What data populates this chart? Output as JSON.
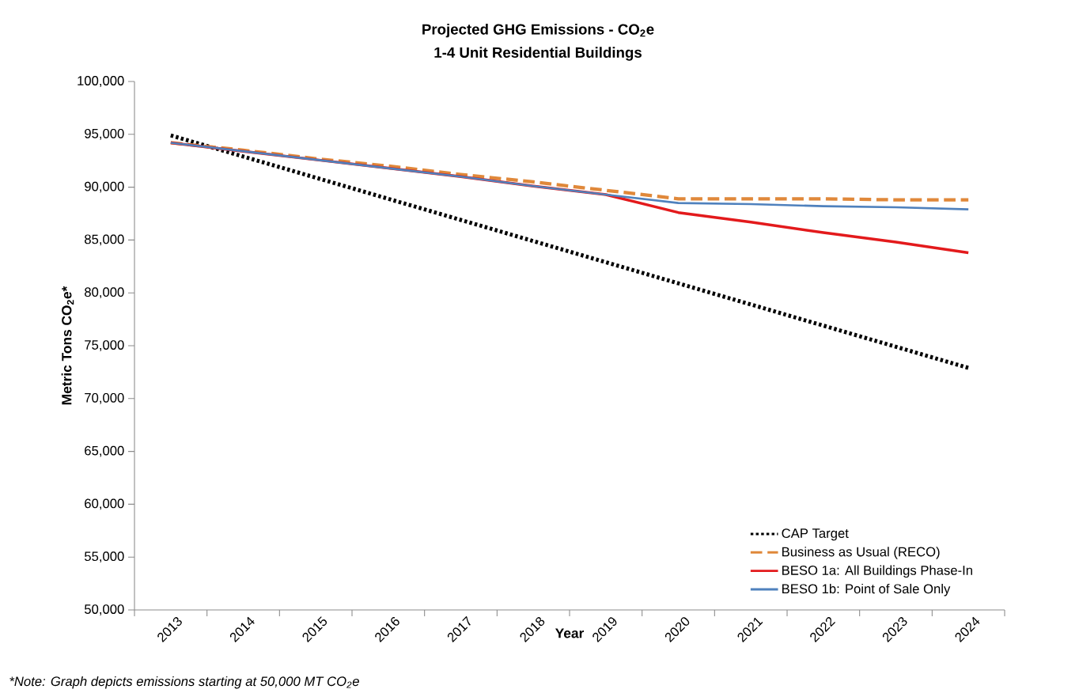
{
  "chart_data": {
    "type": "line",
    "title": "Projected GHG Emissions - CO$_{2}$e",
    "subtitle": "1-4 Unit Residential Buildings",
    "xlabel": "Year",
    "ylabel": "Metric Tons CO$_{2}$e*",
    "annotations": [
      "*Note: Graph depicts emissions starting at 50,000 MT CO$_{2}$e"
    ],
    "categories": [
      "2013",
      "2014",
      "2015",
      "2016",
      "2017",
      "2018",
      "2019",
      "2020",
      "2021",
      "2022",
      "2023",
      "2024"
    ],
    "series": [
      {
        "name": "CAP Target",
        "color": "#000000",
        "line_style": "dotted",
        "values": [
          94900,
          92900,
          90900,
          88900,
          86900,
          84900,
          82900,
          80900,
          78900,
          76900,
          74900,
          72900
        ]
      },
      {
        "name": "Business as Usual (RECO)",
        "color": "#e0883a",
        "line_style": "dashed",
        "values": [
          94200,
          93500,
          92700,
          92000,
          91200,
          90500,
          89700,
          88900,
          88900,
          88900,
          88800,
          88800
        ]
      },
      {
        "name": "BESO 1a: All Buildings Phase-In",
        "color": "#e31a1c",
        "line_style": "solid",
        "values": [
          94200,
          93400,
          92600,
          91800,
          91000,
          90100,
          89300,
          87600,
          86700,
          85700,
          84800,
          83800
        ]
      },
      {
        "name": "BESO 1b: Point of Sale Only",
        "color": "#4f81bd",
        "line_style": "solid",
        "values": [
          94200,
          93400,
          92600,
          91800,
          91000,
          90100,
          89300,
          88500,
          88400,
          88200,
          88100,
          87900
        ]
      }
    ],
    "ylim": [
      50000,
      100000
    ],
    "yticks": [
      {
        "value": 50000,
        "label": "50,000"
      },
      {
        "value": 55000,
        "label": "55,000"
      },
      {
        "value": 60000,
        "label": "60,000"
      },
      {
        "value": 65000,
        "label": "65,000"
      },
      {
        "value": 70000,
        "label": "70,000"
      },
      {
        "value": 75000,
        "label": "75,000"
      },
      {
        "value": 80000,
        "label": "80,000"
      },
      {
        "value": 85000,
        "label": "85,000"
      },
      {
        "value": 90000,
        "label": "90,000"
      },
      {
        "value": 95000,
        "label": "95,000"
      },
      {
        "value": 100000,
        "label": "100,000"
      }
    ],
    "grid": false,
    "legend": "bottom right",
    "marker": "none"
  }
}
